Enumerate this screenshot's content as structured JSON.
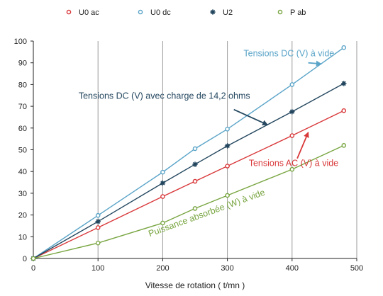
{
  "chart_data": {
    "type": "line",
    "xlabel": "Vitesse de rotation  ( t/mn )",
    "ylabel": "",
    "xlim": [
      0,
      500
    ],
    "ylim": [
      0,
      100
    ],
    "x_ticks": [
      0,
      100,
      200,
      300,
      400,
      500
    ],
    "y_ticks": [
      0,
      10,
      20,
      30,
      40,
      50,
      60,
      70,
      80,
      90,
      100
    ],
    "grid": "vertical",
    "legend": "top",
    "series": [
      {
        "name": "U0 ac",
        "color": "#d9383a",
        "marker": "open-circle",
        "x": [
          0,
          100,
          200,
          250,
          300,
          400,
          480
        ],
        "y": [
          0,
          14.2,
          28.5,
          35.5,
          42.5,
          56.5,
          68
        ]
      },
      {
        "name": "U0 dc",
        "color": "#5aa4c8",
        "marker": "open-circle",
        "x": [
          0,
          100,
          200,
          250,
          300,
          400,
          480
        ],
        "y": [
          0,
          19.8,
          39.7,
          50.5,
          59.5,
          80,
          97
        ]
      },
      {
        "name": "U2",
        "color": "#24475f",
        "marker": "star",
        "x": [
          0,
          100,
          200,
          250,
          300,
          400,
          480
        ],
        "y": [
          0,
          17,
          34.7,
          43.3,
          51.8,
          67.5,
          80.5
        ]
      },
      {
        "name": "P ab",
        "color": "#78a540",
        "marker": "open-circle",
        "x": [
          0,
          100,
          200,
          250,
          300,
          400,
          480
        ],
        "y": [
          0,
          7.1,
          16.3,
          23,
          29,
          41,
          52
        ]
      }
    ],
    "annotations": [
      {
        "text": "Tensions DC (V) à vide",
        "color": "#5aa4c8",
        "at": [
          325,
          93
        ],
        "rotation": 0,
        "arrow_from": [
          425,
          90
        ],
        "arrow_to": [
          445,
          89.5
        ]
      },
      {
        "text": "Tensions DC (V) avec charge de 14,2 ohms",
        "color": "#24475f",
        "at": [
          70,
          73.5
        ],
        "rotation": 0,
        "arrow_from": [
          310,
          68.5
        ],
        "arrow_to": [
          362,
          61.5
        ]
      },
      {
        "text": "Tensions AC (V) à vide",
        "color": "#d9383a",
        "at": [
          333,
          42.5
        ],
        "rotation": 0,
        "arrow_from": [
          408,
          46
        ],
        "arrow_to": [
          425,
          58
        ]
      },
      {
        "text": "Puissance absorbée (W) à vide",
        "color": "#78a540",
        "at": [
          180,
          10
        ],
        "rotation": -20,
        "arrow_from": null,
        "arrow_to": null
      }
    ]
  }
}
